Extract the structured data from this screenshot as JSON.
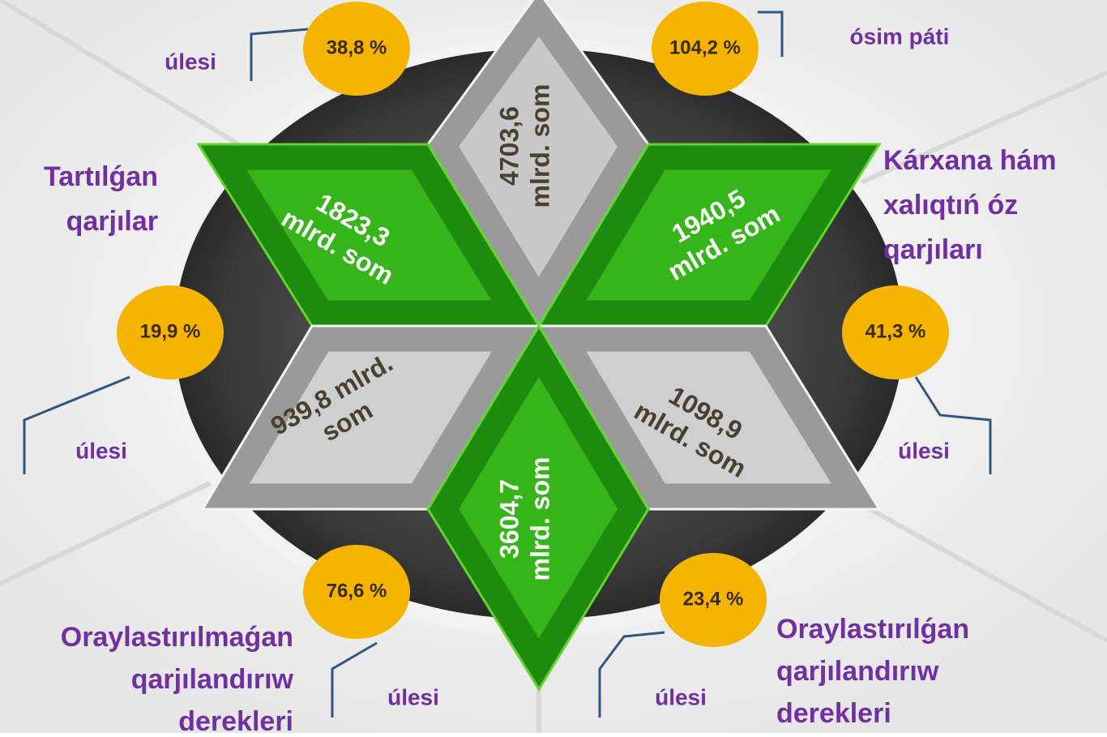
{
  "diamonds": [
    {
      "lines": [
        "4703,6",
        "mlrd. som"
      ]
    },
    {
      "lines": [
        "1823,3",
        "mlrd. som"
      ]
    },
    {
      "lines": [
        "1940,5",
        "mlrd. som"
      ]
    },
    {
      "lines": [
        "939,8 mlrd.",
        "som"
      ]
    },
    {
      "lines": [
        "1098,9",
        "mlrd. som"
      ]
    },
    {
      "lines": [
        "3604,7",
        "mlrd. som"
      ]
    }
  ],
  "badges": [
    "38,8 %",
    "104,2 %",
    "19,9 %",
    "41,3 %",
    "76,6 %",
    "23,4 %"
  ],
  "captions": [
    "úlesi",
    "ósim páti",
    "úlesi",
    "úlesi",
    "úlesi",
    "úlesi"
  ],
  "labels": [
    {
      "lines": [
        "Tartılǵan",
        "qarjılar"
      ]
    },
    {
      "lines": [
        "Kárxana hám",
        "xalıqtıń óz",
        "qarjıları"
      ]
    },
    {
      "lines": [
        "Oraylastırılmaǵan",
        "qarjılandırıw",
        "derekleri"
      ]
    },
    {
      "lines": [
        "Oraylastırılǵan",
        "qarjılandırıw",
        "derekleri"
      ]
    }
  ]
}
